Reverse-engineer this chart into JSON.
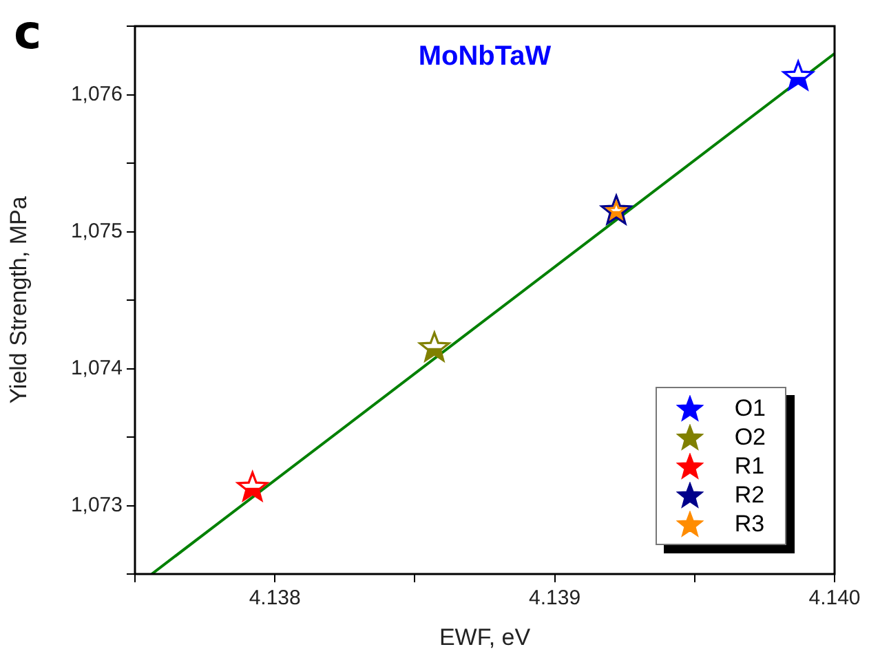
{
  "chart_data": {
    "type": "scatter",
    "title": "MoNbTaW",
    "xlabel": "EWF, eV",
    "ylabel": "Yield Strength, MPa",
    "annotations": [
      "c"
    ],
    "xlim": [
      4.1375,
      4.14
    ],
    "xticks": [
      {
        "value": 4.1375,
        "label": null
      },
      4.138,
      {
        "value": 4.1385,
        "label": null
      },
      4.139,
      {
        "value": 4.1395,
        "label": null
      },
      {
        "value": 4.14,
        "label": "4.140"
      }
    ],
    "ylim": [
      1072.5,
      1076.5
    ],
    "yticks": [
      {
        "value": 1072.5,
        "label": null
      },
      {
        "value": 1073,
        "label": "1,073"
      },
      {
        "value": 1073.5,
        "label": null
      },
      {
        "value": 1074,
        "label": "1,074"
      },
      {
        "value": 1074.5,
        "label": null
      },
      {
        "value": 1075,
        "label": "1,075"
      },
      {
        "value": 1075.5,
        "label": null
      },
      {
        "value": 1076,
        "label": "1,076"
      },
      {
        "value": 1076.5,
        "label": null
      }
    ],
    "grid": false,
    "legend": "bottom right",
    "marker": "star",
    "series": [
      {
        "name": "O1",
        "color": "#0000ff",
        "x": [
          4.13987
        ],
        "values": [
          1076.13
        ]
      },
      {
        "name": "O2",
        "color": "#808000",
        "x": [
          4.13857
        ],
        "values": [
          1074.15
        ]
      },
      {
        "name": "R1",
        "color": "#ff0000",
        "x": [
          4.13792
        ],
        "values": [
          1073.13
        ]
      },
      {
        "name": "R2",
        "color": "#00008b",
        "x": [
          4.13922
        ],
        "values": [
          1075.15
        ]
      },
      {
        "name": "R3",
        "color": "#ff8c00",
        "x": [
          4.13922
        ],
        "values": [
          1075.15
        ]
      },
      {
        "type": "line",
        "color": "#008000",
        "x": [
          4.13756,
          4.14
        ],
        "values": [
          1072.5,
          1076.3
        ],
        "marker": "none",
        "line_style": "solid"
      }
    ]
  }
}
